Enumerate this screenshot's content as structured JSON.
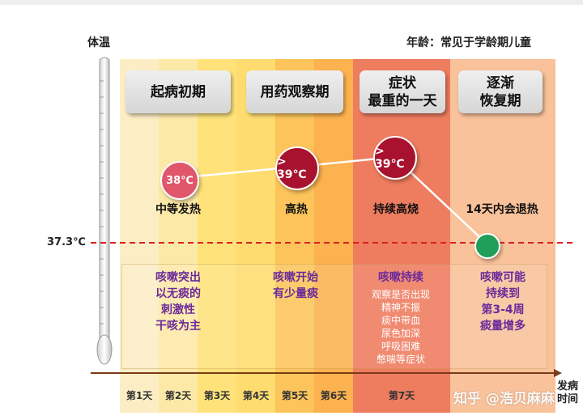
{
  "header": {
    "y_label": "体温",
    "age_note": "年龄：常见于学龄期儿童"
  },
  "phases": [
    {
      "title": "起病初期"
    },
    {
      "title": "用药观察期"
    },
    {
      "title": "症状\n最重的一天"
    },
    {
      "title": "逐渐\n恢复期"
    }
  ],
  "temps": [
    {
      "label": "38℃",
      "state": "中等发热"
    },
    {
      "label": "> 39℃",
      "state": "高热"
    },
    {
      "label": "> 39℃",
      "state": "持续高烧"
    },
    {
      "label": "",
      "state": "14天内会退热"
    }
  ],
  "threshold": {
    "label": "37.3℃"
  },
  "cough": [
    {
      "text": "咳嗽突出\n以无痰的\n刺激性\n干咳为主"
    },
    {
      "text": "咳嗽开始\n有少量痰"
    },
    {
      "text": "咳嗽持续",
      "details": "观察是否出现\n精神不振\n痰中带血\n尿色加深\n呼吸困难\n憋喘等症状"
    },
    {
      "text": "咳嗽可能\n持续到\n第3-4周\n痰量增多"
    }
  ],
  "days": [
    "第1天",
    "第2天",
    "第3天",
    "第4天",
    "第5天",
    "第6天",
    "第7天"
  ],
  "x_axis_label": "发病\n时间",
  "watermark": "知乎 @浩贝麻麻",
  "colors": {
    "band1": "#fcedc4",
    "band2": "#fde9a7",
    "band3": "#ffe27a",
    "band4": "#fdd266",
    "band5": "#fcc45b",
    "band6": "#fbb24f",
    "band7": "#ee7c5f",
    "band8": "#f9c29a",
    "threshold": "#d72121",
    "bubble1": "#e0566a",
    "bubble2": "#a8122e",
    "bubble3": "#a8122e",
    "bubble4": "#1f9f5a"
  }
}
